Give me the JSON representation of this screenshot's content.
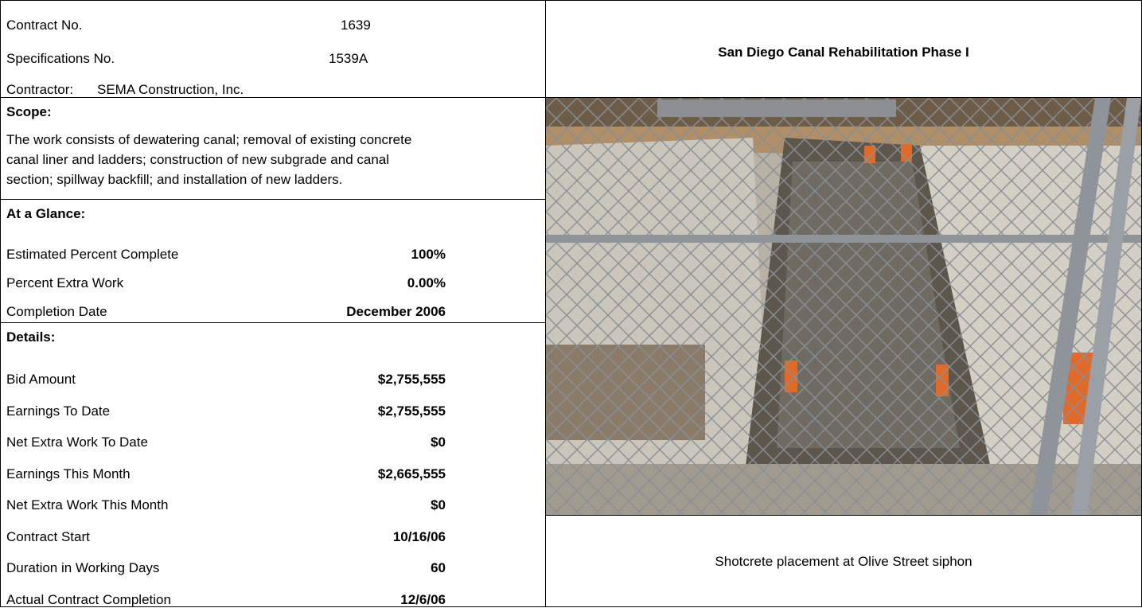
{
  "header": {
    "contract_no": {
      "label": "Contract No.",
      "value": "1639"
    },
    "specifications_no": {
      "label": "Specifications No.",
      "value": "1539A"
    },
    "contractor": {
      "label": "Contractor:",
      "value": "SEMA Construction, Inc."
    }
  },
  "title": "San Diego Canal Rehabilitation Phase I",
  "scope": {
    "label": "Scope:",
    "lines": [
      "The work consists of dewatering canal; removal of existing concrete",
      "canal liner and  ladders; construction of new subgrade and canal",
      "section; spillway backfill; and  installation of new ladders."
    ]
  },
  "at_a_glance": {
    "label": "At a Glance:",
    "rows": [
      {
        "label": "Estimated Percent Complete",
        "value": "100%"
      },
      {
        "label": "Percent Extra Work",
        "value": "0.00%"
      },
      {
        "label": "Completion Date",
        "value": "December 2006"
      }
    ]
  },
  "details": {
    "label": "Details:",
    "rows": [
      {
        "label": "Bid Amount",
        "value": "$2,755,555"
      },
      {
        "label": "Earnings To Date",
        "value": "$2,755,555"
      },
      {
        "label": "Net Extra Work To Date",
        "value": "$0"
      },
      {
        "label": "Earnings This Month",
        "value": "$2,665,555"
      },
      {
        "label": "Net Extra Work This Month",
        "value": "$0"
      },
      {
        "label": "Contract Start",
        "value": "10/16/06"
      },
      {
        "label": "Duration in Working Days",
        "value": "60"
      },
      {
        "label": "Actual Contract Completion",
        "value": "12/6/06"
      }
    ]
  },
  "caption": "Shotcrete placement at Olive Street siphon"
}
